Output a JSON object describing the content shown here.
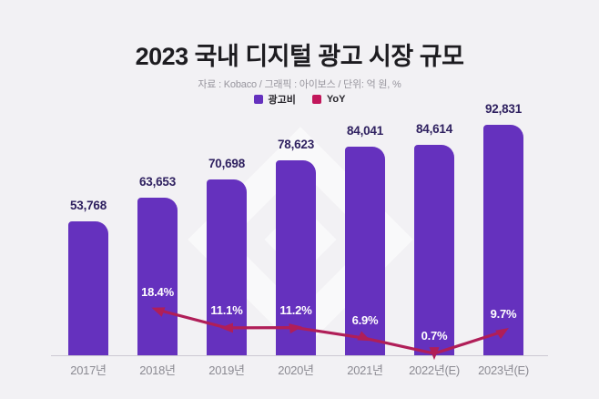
{
  "header": {
    "title": "2023 국내 디지털 광고 시장 규모",
    "source_note": "자료 : Kobaco / 그래픽 : 아이보스 / 단위: 억 원, %"
  },
  "legend": {
    "items": [
      {
        "label": "광고비",
        "color": "#6531be"
      },
      {
        "label": "YoY",
        "color": "#c2175b"
      }
    ]
  },
  "chart_data": {
    "type": "bar",
    "subtype": "bar-line-combo",
    "title": "2023 국내 디지털 광고 시장 규모",
    "source": "자료 : Kobaco",
    "graphic_credit": "그래픽 : 아이보스",
    "unit": "억 원, %",
    "categories": [
      "2017년",
      "2018년",
      "2019년",
      "2020년",
      "2021년",
      "2022년(E)",
      "2023년(E)"
    ],
    "series": [
      {
        "name": "광고비",
        "type": "bar",
        "color": "#6531be",
        "values": [
          53768,
          63653,
          70698,
          78623,
          84041,
          84614,
          92831
        ],
        "labels": [
          "53,768",
          "63,653",
          "70,698",
          "78,623",
          "84,041",
          "84,614",
          "92,831"
        ]
      },
      {
        "name": "YoY",
        "type": "line",
        "color": "#b01e58",
        "unit": "%",
        "values": [
          null,
          18.4,
          11.1,
          11.2,
          6.9,
          0.7,
          9.7
        ],
        "labels": [
          "",
          "18.4%",
          "11.1%",
          "11.2%",
          "6.9%",
          "0.7%",
          "9.7%"
        ]
      }
    ],
    "legend_position": "top",
    "grid": false,
    "background_color": "#f2f1f4"
  }
}
